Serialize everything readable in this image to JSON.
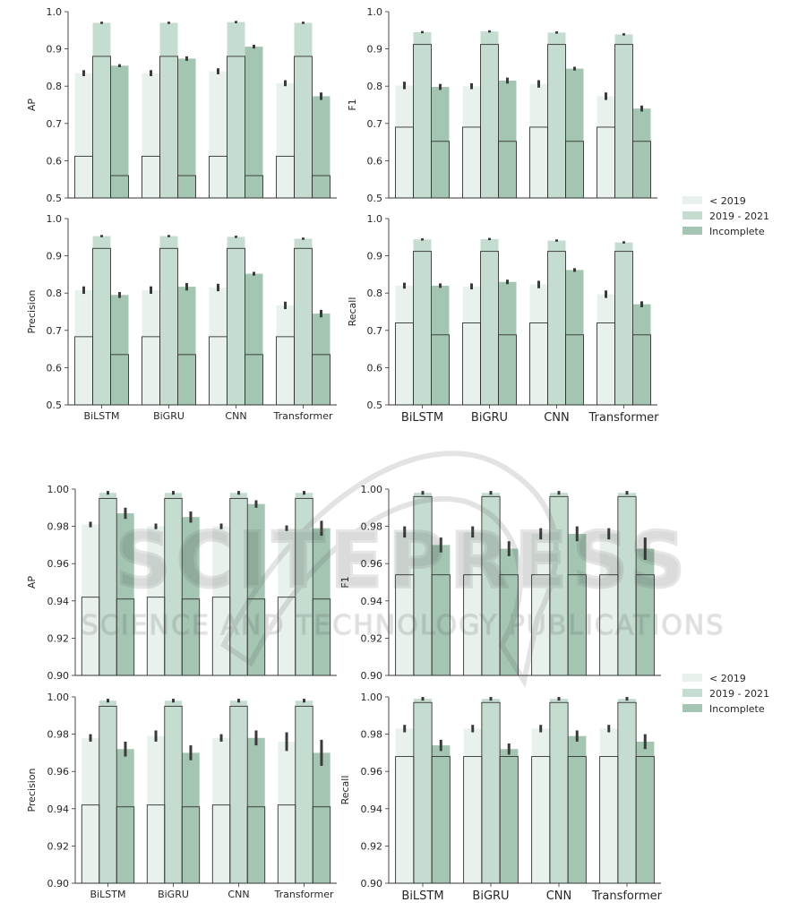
{
  "legend": {
    "entries": [
      {
        "label": "< 2019",
        "color": "#e9f1ec"
      },
      {
        "label": "2019 - 2021",
        "color": "#c5ddd1"
      },
      {
        "label": "Incomplete",
        "color": "#a3c5b2"
      }
    ],
    "placement": "right"
  },
  "watermark": {
    "main": "SCITEPRESS",
    "sub": "SCIENCE AND TECHNOLOGY PUBLICATIONS"
  },
  "chart_data": [
    {
      "type": "bar",
      "ylabel": "AP",
      "ylim": [
        0.5,
        1.0
      ],
      "yticks": [
        0.5,
        0.6,
        0.7,
        0.8,
        0.9,
        1.0
      ],
      "tick_format": 1,
      "categories": [
        "BiLSTM",
        "BiGRU",
        "CNN",
        "Transformer"
      ],
      "show_xticks": false,
      "series": [
        {
          "name": "< 2019",
          "values": [
            0.835,
            0.835,
            0.84,
            0.808
          ],
          "err": [
            0.008,
            0.008,
            0.008,
            0.008
          ]
        },
        {
          "name": "2019 - 2021",
          "values": [
            0.97,
            0.97,
            0.972,
            0.97
          ],
          "err": [
            0.003,
            0.003,
            0.003,
            0.003
          ]
        },
        {
          "name": "Incomplete",
          "values": [
            0.855,
            0.874,
            0.906,
            0.773
          ],
          "err": [
            0.004,
            0.006,
            0.005,
            0.01
          ]
        }
      ],
      "baseline": [
        0.612,
        0.88,
        0.56
      ]
    },
    {
      "type": "bar",
      "ylabel": "F1",
      "ylim": [
        0.5,
        1.0
      ],
      "yticks": [
        0.5,
        0.6,
        0.7,
        0.8,
        0.9,
        1.0
      ],
      "tick_format": 1,
      "categories": [
        "BiLSTM",
        "BiGRU",
        "CNN",
        "Transformer"
      ],
      "show_xticks": false,
      "series": [
        {
          "name": "< 2019",
          "values": [
            0.802,
            0.8,
            0.806,
            0.773
          ],
          "err": [
            0.01,
            0.008,
            0.01,
            0.01
          ]
        },
        {
          "name": "2019 - 2021",
          "values": [
            0.945,
            0.947,
            0.944,
            0.939
          ],
          "err": [
            0.003,
            0.003,
            0.003,
            0.003
          ]
        },
        {
          "name": "Incomplete",
          "values": [
            0.798,
            0.815,
            0.847,
            0.74
          ],
          "err": [
            0.008,
            0.008,
            0.005,
            0.008
          ]
        }
      ],
      "baseline": [
        0.69,
        0.912,
        0.652
      ]
    },
    {
      "type": "bar",
      "ylabel": "Precision",
      "ylim": [
        0.5,
        1.0
      ],
      "yticks": [
        0.5,
        0.6,
        0.7,
        0.8,
        0.9,
        1.0
      ],
      "tick_format": 1,
      "categories": [
        "BiLSTM",
        "BiGRU",
        "CNN",
        "Transformer"
      ],
      "show_xticks": true,
      "series": [
        {
          "name": "< 2019",
          "values": [
            0.808,
            0.808,
            0.815,
            0.767
          ],
          "err": [
            0.01,
            0.01,
            0.01,
            0.01
          ]
        },
        {
          "name": "2019 - 2021",
          "values": [
            0.953,
            0.953,
            0.951,
            0.946
          ],
          "err": [
            0.003,
            0.003,
            0.003,
            0.003
          ]
        },
        {
          "name": "Incomplete",
          "values": [
            0.795,
            0.817,
            0.852,
            0.745
          ],
          "err": [
            0.008,
            0.01,
            0.005,
            0.01
          ]
        }
      ],
      "baseline": [
        0.683,
        0.92,
        0.635
      ]
    },
    {
      "type": "bar",
      "ylabel": "Recall",
      "ylim": [
        0.5,
        1.0
      ],
      "yticks": [
        0.5,
        0.6,
        0.7,
        0.8,
        0.9,
        1.0
      ],
      "tick_format": 1,
      "categories": [
        "BiLSTM",
        "BiGRU",
        "CNN",
        "Transformer"
      ],
      "show_xticks": true,
      "series": [
        {
          "name": "< 2019",
          "values": [
            0.82,
            0.818,
            0.823,
            0.797
          ],
          "err": [
            0.008,
            0.008,
            0.01,
            0.01
          ]
        },
        {
          "name": "2019 - 2021",
          "values": [
            0.944,
            0.945,
            0.941,
            0.936
          ],
          "err": [
            0.003,
            0.003,
            0.003,
            0.003
          ]
        },
        {
          "name": "Incomplete",
          "values": [
            0.82,
            0.83,
            0.862,
            0.77
          ],
          "err": [
            0.006,
            0.006,
            0.005,
            0.008
          ]
        }
      ],
      "baseline": [
        0.72,
        0.912,
        0.688
      ]
    },
    {
      "type": "bar",
      "ylabel": "AP",
      "ylim": [
        0.9,
        1.0
      ],
      "yticks": [
        0.9,
        0.92,
        0.94,
        0.96,
        0.98,
        1.0
      ],
      "tick_format": 2,
      "categories": [
        "BiLSTM",
        "BiGRU",
        "CNN",
        "Transformer"
      ],
      "show_xticks": false,
      "series": [
        {
          "name": "< 2019",
          "values": [
            0.981,
            0.98,
            0.98,
            0.979
          ],
          "err": [
            0.0015,
            0.0015,
            0.0015,
            0.0015
          ]
        },
        {
          "name": "2019 - 2021",
          "values": [
            0.998,
            0.998,
            0.998,
            0.998
          ],
          "err": [
            0.001,
            0.001,
            0.001,
            0.001
          ]
        },
        {
          "name": "Incomplete",
          "values": [
            0.987,
            0.985,
            0.992,
            0.979
          ],
          "err": [
            0.003,
            0.003,
            0.002,
            0.004
          ]
        }
      ],
      "baseline": [
        0.942,
        0.995,
        0.941
      ]
    },
    {
      "type": "bar",
      "ylabel": "F1",
      "ylim": [
        0.9,
        1.0
      ],
      "yticks": [
        0.9,
        0.92,
        0.94,
        0.96,
        0.98,
        1.0
      ],
      "tick_format": 2,
      "categories": [
        "BiLSTM",
        "BiGRU",
        "CNN",
        "Transformer"
      ],
      "show_xticks": false,
      "series": [
        {
          "name": "< 2019",
          "values": [
            0.977,
            0.977,
            0.976,
            0.976
          ],
          "err": [
            0.003,
            0.003,
            0.003,
            0.003
          ]
        },
        {
          "name": "2019 - 2021",
          "values": [
            0.998,
            0.998,
            0.998,
            0.998
          ],
          "err": [
            0.001,
            0.001,
            0.001,
            0.001
          ]
        },
        {
          "name": "Incomplete",
          "values": [
            0.97,
            0.968,
            0.976,
            0.968
          ],
          "err": [
            0.004,
            0.004,
            0.004,
            0.006
          ]
        }
      ],
      "baseline": [
        0.954,
        0.996,
        0.954
      ]
    },
    {
      "type": "bar",
      "ylabel": "Precision",
      "ylim": [
        0.9,
        1.0
      ],
      "yticks": [
        0.9,
        0.92,
        0.94,
        0.96,
        0.98,
        1.0
      ],
      "tick_format": 2,
      "categories": [
        "BiLSTM",
        "BiGRU",
        "CNN",
        "Transformer"
      ],
      "show_xticks": true,
      "series": [
        {
          "name": "< 2019",
          "values": [
            0.978,
            0.979,
            0.978,
            0.976
          ],
          "err": [
            0.002,
            0.003,
            0.002,
            0.005
          ]
        },
        {
          "name": "2019 - 2021",
          "values": [
            0.998,
            0.998,
            0.998,
            0.998
          ],
          "err": [
            0.001,
            0.001,
            0.001,
            0.001
          ]
        },
        {
          "name": "Incomplete",
          "values": [
            0.972,
            0.97,
            0.978,
            0.97
          ],
          "err": [
            0.004,
            0.004,
            0.004,
            0.007
          ]
        }
      ],
      "baseline": [
        0.942,
        0.995,
        0.941
      ]
    },
    {
      "type": "bar",
      "ylabel": "Recall",
      "ylim": [
        0.9,
        1.0
      ],
      "yticks": [
        0.9,
        0.92,
        0.94,
        0.96,
        0.98,
        1.0
      ],
      "tick_format": 2,
      "categories": [
        "BiLSTM",
        "BiGRU",
        "CNN",
        "Transformer"
      ],
      "show_xticks": true,
      "series": [
        {
          "name": "< 2019",
          "values": [
            0.983,
            0.983,
            0.983,
            0.983
          ],
          "err": [
            0.002,
            0.002,
            0.002,
            0.002
          ]
        },
        {
          "name": "2019 - 2021",
          "values": [
            0.999,
            0.999,
            0.999,
            0.999
          ],
          "err": [
            0.001,
            0.001,
            0.001,
            0.001
          ]
        },
        {
          "name": "Incomplete",
          "values": [
            0.974,
            0.972,
            0.979,
            0.976
          ],
          "err": [
            0.003,
            0.003,
            0.003,
            0.004
          ]
        }
      ],
      "baseline": [
        0.968,
        0.997,
        0.968
      ]
    }
  ]
}
